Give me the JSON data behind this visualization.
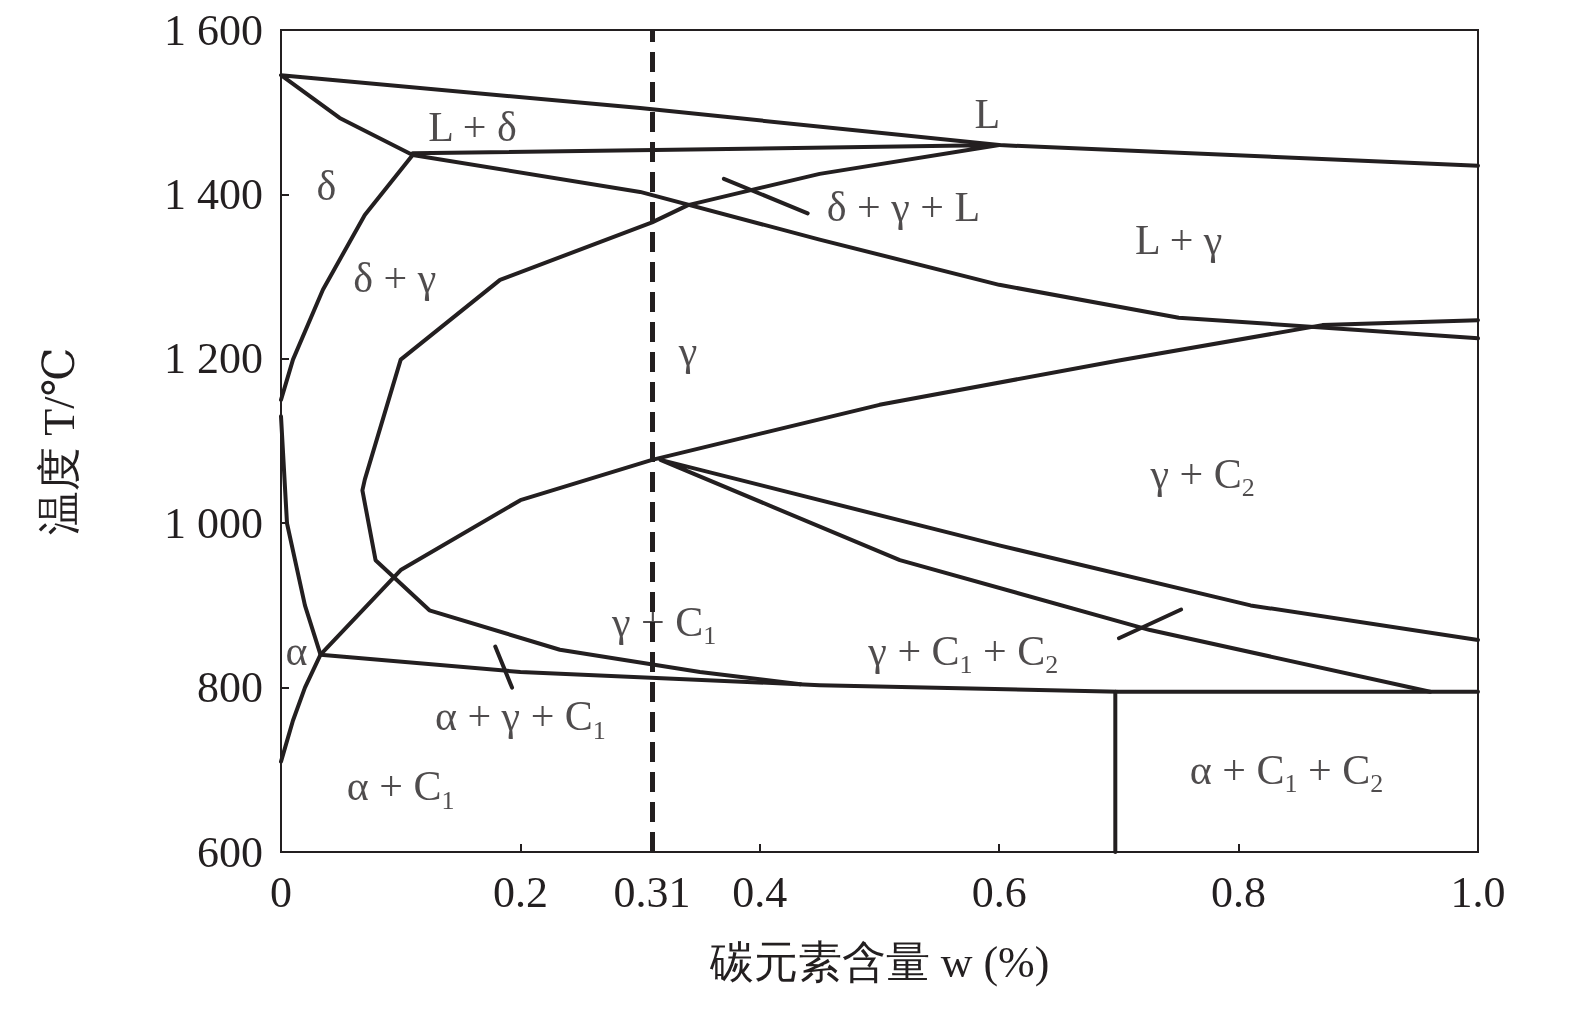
{
  "chart_data": {
    "type": "line",
    "xlabel": "碳元素含量 w (%)",
    "ylabel": "温度 T/℃",
    "xlim": [
      0,
      1.0
    ],
    "ylim": [
      600,
      1600
    ],
    "xticks": [
      0,
      0.2,
      0.31,
      0.4,
      0.6,
      0.8,
      {
        "value": 1.0,
        "label": "1.0"
      }
    ],
    "yticks": [
      600,
      800,
      {
        "value": 1000,
        "label": "1 000"
      },
      {
        "value": 1200,
        "label": "1 200"
      },
      {
        "value": 1400,
        "label": "1 400"
      },
      {
        "value": 1600,
        "label": "1 600"
      }
    ],
    "grid": false,
    "marker": "none",
    "line_style": "solid",
    "series": [
      {
        "color": "#231f20",
        "x": [
          0.11,
          0.049,
          0,
          0.3,
          0.6,
          1.0
        ],
        "values": [
          1448,
          1493,
          1545,
          1505,
          1460,
          1435
        ]
      },
      {
        "color": "#231f20",
        "x": [
          0.11,
          0.6,
          0.45,
          0.34,
          0.31,
          0.183,
          0.1,
          0.07,
          0.068,
          0.079,
          0.124,
          0.233,
          0.35,
          0.434
        ],
        "values": [
          1450,
          1460,
          1425,
          1387,
          1366,
          1296,
          1199,
          1053,
          1040,
          955,
          894,
          846,
          819,
          804
        ]
      },
      {
        "color": "#231f20",
        "x": [
          0,
          0.01,
          0.035,
          0.07,
          0.11,
          0.3,
          0.45,
          0.6,
          0.75,
          0.9,
          1.0
        ],
        "values": [
          1150,
          1199,
          1284,
          1375,
          1448,
          1403,
          1345,
          1290,
          1250,
          1235,
          1225
        ]
      },
      {
        "color": "#231f20",
        "x": [
          0,
          0.01,
          0.02,
          0.033,
          0.1,
          0.2,
          0.31,
          0.5,
          0.7,
          0.87,
          1.0
        ],
        "values": [
          710,
          760,
          800,
          840,
          943,
          1028,
          1077,
          1144,
          1198,
          1241,
          1247
        ]
      },
      {
        "color": "#231f20",
        "x": [
          0,
          0.005,
          0.02,
          0.033,
          0.2,
          0.45,
          0.7,
          1.0
        ],
        "values": [
          1130,
          1000,
          900,
          840,
          819,
          803,
          795,
          795
        ]
      },
      {
        "color": "#231f20",
        "x": [
          1.0,
          0.81,
          0.6,
          0.317,
          0.517,
          0.726,
          0.96
        ],
        "values": [
          858,
          900,
          973,
          1077,
          955,
          870,
          795
        ]
      },
      {
        "color": "#231f20",
        "x": [
          0.697,
          0.697
        ],
        "values": [
          795,
          600
        ]
      },
      {
        "color": "#231f20",
        "x": [
          0.37,
          0.44
        ],
        "values": [
          1419,
          1377
        ]
      },
      {
        "color": "#231f20",
        "x": [
          0.7,
          0.752
        ],
        "values": [
          860,
          895
        ]
      },
      {
        "color": "#231f20",
        "x": [
          0.179,
          0.193
        ],
        "values": [
          850,
          800
        ]
      }
    ],
    "ref_lines": [
      {
        "axis": "x",
        "value": 0.31,
        "color": "#231f20",
        "line_style": "dashed"
      }
    ],
    "annotations": [
      "L",
      "L + δ",
      "δ",
      "δ + γ + L",
      "L + γ",
      "δ + γ",
      "γ",
      "γ + C$_{2}$",
      "γ + C$_{1}$",
      "γ + C$_{1}$ + C$_{2}$",
      "α",
      "α + γ + C$_{1}$",
      "α + C$_{1}$",
      "α + C$_{1}$ + C$_{2}$"
    ]
  }
}
